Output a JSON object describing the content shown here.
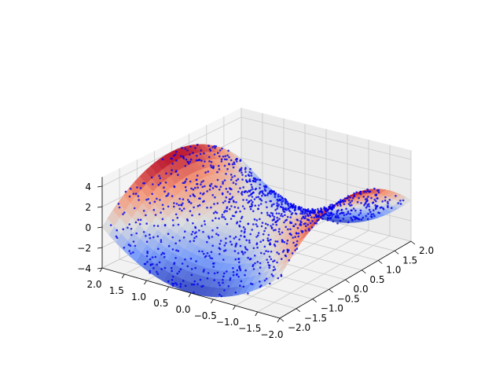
{
  "chart_data": {
    "type": "surface",
    "title": "",
    "xlabel": "",
    "ylabel": "",
    "zlabel": "",
    "function": "x^2 - y^2",
    "x_range": [
      -2.0,
      2.0
    ],
    "y_range": [
      -2.0,
      2.0
    ],
    "z_range": [
      -4,
      4
    ],
    "x_ticks": [
      "2.0",
      "1.5",
      "1.0",
      "0.5",
      "0.0",
      "−0.5",
      "−1.0",
      "−1.5",
      "−2.0"
    ],
    "y_ticks": [
      "−2.0",
      "−1.5",
      "−1.0",
      "−0.5",
      "0.0",
      "0.5",
      "1.0",
      "1.5",
      "2.0"
    ],
    "z_ticks": [
      "−4",
      "−2",
      "0",
      "2",
      "4"
    ],
    "x_tick_values": [
      2.0,
      1.5,
      1.0,
      0.5,
      0.0,
      -0.5,
      -1.0,
      -1.5,
      -2.0
    ],
    "y_tick_values": [
      -2.0,
      -1.5,
      -1.0,
      -0.5,
      0.0,
      0.5,
      1.0,
      1.5,
      2.0
    ],
    "z_tick_values": [
      -4,
      -2,
      0,
      2,
      4
    ],
    "surface_colormap": "coolwarm",
    "scatter": {
      "color": "#0000ee",
      "marker": "dot",
      "points": 1200,
      "noise": "small random offset around the surface"
    },
    "grid": true,
    "pane_color": "#f2f2f2",
    "view": {
      "elevation": 30,
      "azimuth": -60
    }
  }
}
